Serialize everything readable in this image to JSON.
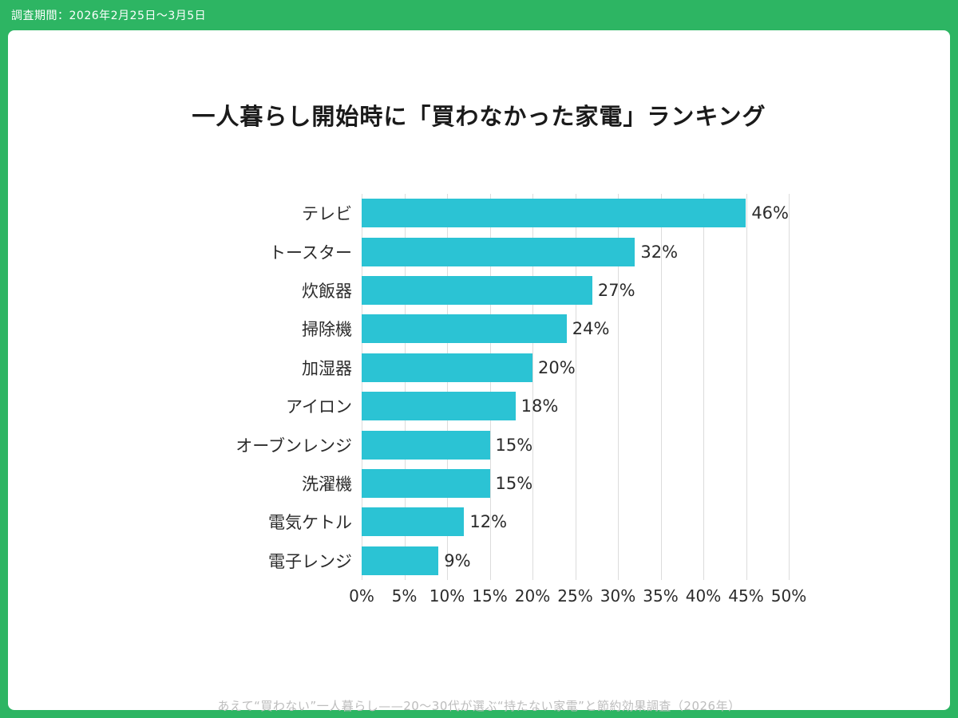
{
  "badge": {
    "label": "調査期間：2026年2月25日〜3月5日"
  },
  "title": "一人暮らし開始時に「買わなかった家電」ランキング",
  "footer": "あえて“買わない”一人暮らし——20〜30代が選ぶ“持たない家電”と節約効果調査（2026年）",
  "colors": {
    "frame": "#2db563",
    "bar": "#2bc3d4",
    "grid": "#dcdcdc",
    "footer_text": "#bdbdbd"
  },
  "chart_data": {
    "type": "bar",
    "orientation": "horizontal",
    "title": "一人暮らし開始時に「買わなかった家電」ランキング",
    "categories": [
      "テレビ",
      "トースター",
      "炊飯器",
      "掃除機",
      "加湿器",
      "アイロン",
      "オーブンレンジ",
      "洗濯機",
      "電気ケトル",
      "電子レンジ"
    ],
    "values": [
      46,
      32,
      27,
      24,
      20,
      18,
      15,
      15,
      12,
      9
    ],
    "value_suffix": "%",
    "xlim": [
      0,
      50
    ],
    "x_ticks": [
      "0%",
      "5%",
      "10%",
      "15%",
      "20%",
      "25%",
      "30%",
      "35%",
      "40%",
      "45%",
      "50%"
    ],
    "grid": true,
    "legend": false
  }
}
